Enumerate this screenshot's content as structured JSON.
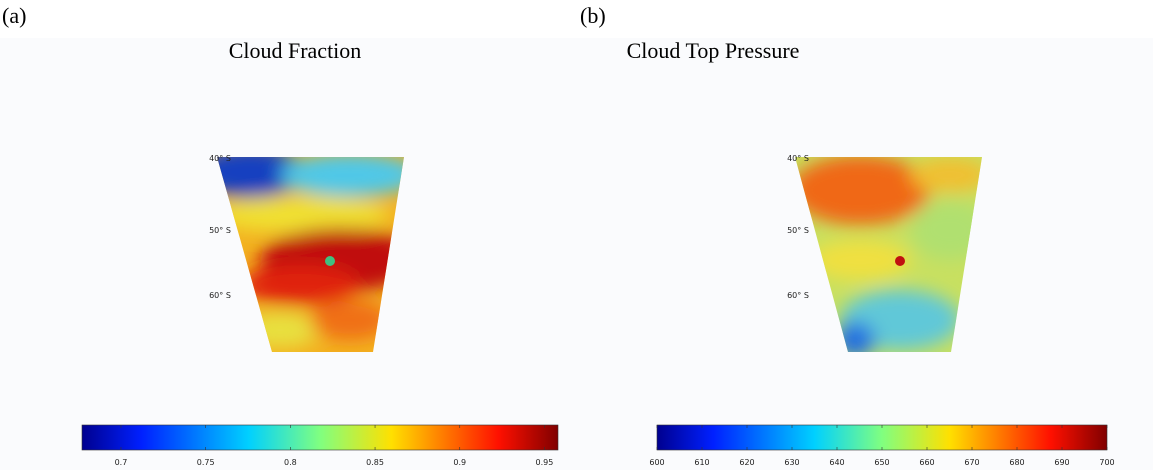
{
  "chart_data": [
    {
      "type": "heatmap",
      "panel_label": "(a)",
      "title": "Cloud Fraction",
      "lat_labels": [
        "40° S",
        "50° S",
        "60° S"
      ],
      "colormap": "jet",
      "clim": [
        0.677,
        0.958
      ],
      "cticks": [
        0.7,
        0.75,
        0.8,
        0.85,
        0.9,
        0.95
      ]
    },
    {
      "type": "heatmap",
      "panel_label": "(b)",
      "title": "Cloud Top Pressure",
      "lat_labels": [
        "40° S",
        "50° S",
        "60° S"
      ],
      "colormap": "jet",
      "clim": [
        600,
        700
      ],
      "cticks": [
        600,
        610,
        620,
        630,
        640,
        650,
        660,
        670,
        680,
        690,
        700
      ]
    }
  ]
}
